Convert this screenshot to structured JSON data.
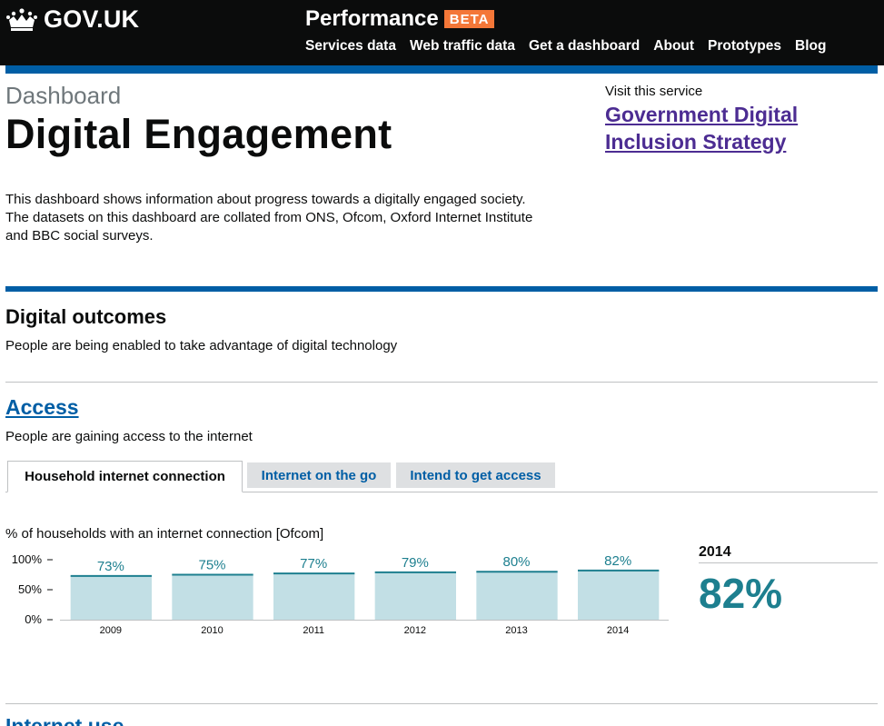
{
  "header": {
    "logo_text": "GOV.UK",
    "product": "Performance",
    "badge": "BETA",
    "nav": [
      "Services data",
      "Web traffic data",
      "Get a dashboard",
      "About",
      "Prototypes",
      "Blog"
    ]
  },
  "page": {
    "kicker": "Dashboard",
    "title": "Digital Engagement",
    "visit_label": "Visit this service",
    "visit_link": "Government Digital Inclusion Strategy",
    "intro": "This dashboard shows information about progress towards a digitally engaged society. The datasets on this dashboard are collated from ONS, Ofcom, Oxford Internet Institute and BBC social surveys."
  },
  "outcomes": {
    "title": "Digital outcomes",
    "description": "People are being enabled to take advantage of digital technology"
  },
  "access": {
    "title": "Access",
    "description": "People are gaining access to the internet",
    "tabs": [
      "Household internet connection",
      "Internet on the go",
      "Intend to get access"
    ],
    "active_tab": "Household internet connection"
  },
  "latest": {
    "year": "2014",
    "value": "82%"
  },
  "next_section": {
    "title": "Internet use"
  },
  "colors": {
    "header_bg": "#0b0c0c",
    "accent_blue": "#005ea5",
    "link_purple": "#4c2c92",
    "beta_orange": "#f47738",
    "bar_fill": "#c2dfe5",
    "bar_edge": "#1d7f8f",
    "value_teal": "#1d7f8f"
  },
  "chart_data": {
    "type": "bar",
    "title": "% of households with an internet connection [Ofcom]",
    "categories": [
      "2009",
      "2010",
      "2011",
      "2012",
      "2013",
      "2014"
    ],
    "values": [
      73,
      75,
      77,
      79,
      80,
      82
    ],
    "data_labels": [
      "73%",
      "75%",
      "77%",
      "79%",
      "80%",
      "82%"
    ],
    "yticks": [
      "100%",
      "50%",
      "0%"
    ],
    "ylim": [
      0,
      100
    ],
    "grid": false
  }
}
